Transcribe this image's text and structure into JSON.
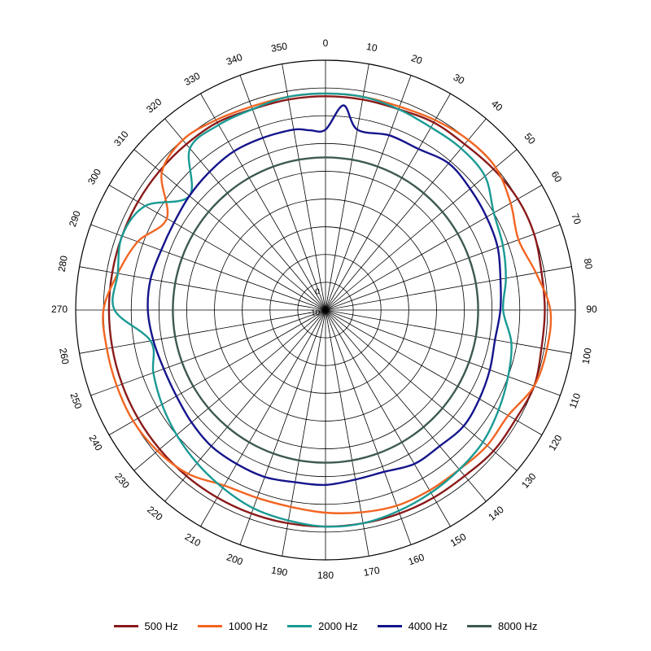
{
  "chart_data": {
    "type": "polar-line",
    "angle_labels": [
      "0",
      "10",
      "20",
      "30",
      "40",
      "50",
      "60",
      "70",
      "80",
      "90",
      "100",
      "110",
      "120",
      "130",
      "140",
      "150",
      "160",
      "170",
      "180",
      "190",
      "200",
      "210",
      "220",
      "230",
      "240",
      "250",
      "260",
      "270",
      "280",
      "290",
      "300",
      "310",
      "320",
      "330",
      "340",
      "350"
    ],
    "radial_labels": [
      "0",
      "-10"
    ],
    "radial_range": [
      -40,
      5
    ],
    "radial_rings": [
      5,
      0,
      -5,
      -10,
      -15,
      -20,
      -25,
      -30,
      -35
    ],
    "grid": true,
    "legend_position": "bottom",
    "series": [
      {
        "name": "500 Hz",
        "color": "#8b1a1a",
        "angles": [
          0,
          10,
          20,
          30,
          40,
          50,
          60,
          70,
          80,
          90,
          100,
          110,
          120,
          130,
          140,
          150,
          160,
          170,
          180,
          190,
          200,
          210,
          220,
          230,
          240,
          250,
          260,
          270,
          280,
          290,
          300,
          310,
          320,
          330,
          340,
          350
        ],
        "values": [
          -1.5,
          -1.5,
          -1.5,
          -1,
          -1,
          -0.5,
          0,
          0,
          -0.5,
          -0.5,
          -0.5,
          0,
          -0.5,
          -0.5,
          -1,
          -1,
          -1,
          -1,
          -1,
          -1,
          -1,
          -1,
          -1,
          -1,
          -1,
          -1,
          -1,
          -1,
          -1,
          -1,
          -1,
          -1,
          -1,
          -1,
          -1.5,
          -1.5
        ]
      },
      {
        "name": "1000 Hz",
        "color": "#f26522",
        "angles": [
          0,
          10,
          20,
          30,
          40,
          50,
          60,
          70,
          80,
          90,
          100,
          110,
          120,
          130,
          140,
          150,
          160,
          170,
          180,
          190,
          200,
          210,
          220,
          230,
          240,
          250,
          260,
          270,
          280,
          290,
          300,
          310,
          320,
          330,
          340,
          350
        ],
        "values": [
          -1,
          -1,
          -1,
          -0.5,
          0,
          0,
          -1.5,
          -3,
          -1.5,
          0.5,
          0.5,
          0,
          -2,
          -2,
          -2.5,
          -2.5,
          -2.5,
          -3,
          -3.5,
          -4,
          -4,
          -3.5,
          -1.5,
          -0.5,
          0,
          0,
          0,
          0,
          -2,
          -4,
          -7,
          -1.5,
          0,
          -0.5,
          -1,
          -1
        ]
      },
      {
        "name": "2000 Hz",
        "color": "#1a9a94",
        "angles": [
          0,
          10,
          20,
          30,
          40,
          50,
          60,
          70,
          80,
          90,
          100,
          110,
          120,
          130,
          140,
          150,
          160,
          170,
          180,
          190,
          200,
          210,
          220,
          230,
          240,
          250,
          260,
          270,
          280,
          290,
          300,
          310,
          320,
          330,
          340,
          350
        ],
        "values": [
          -1,
          -1,
          -1.5,
          -2,
          -2,
          -2.5,
          -5,
          -6,
          -7,
          -8,
          -6,
          -5,
          -4,
          -3,
          -2.5,
          -2,
          -1.5,
          -1,
          -1,
          -1.5,
          -2,
          -3,
          -4,
          -5,
          -6,
          -7,
          -8,
          -2,
          -2,
          -1,
          -2.5,
          -8,
          -2,
          -1.5,
          -1.5,
          -1
        ]
      },
      {
        "name": "4000 Hz",
        "color": "#14148c",
        "angles": [
          0,
          5,
          10,
          20,
          30,
          40,
          50,
          60,
          70,
          80,
          90,
          100,
          110,
          120,
          130,
          140,
          150,
          160,
          170,
          180,
          190,
          200,
          210,
          220,
          230,
          240,
          250,
          260,
          270,
          280,
          290,
          300,
          310,
          320,
          330,
          340,
          350,
          355
        ],
        "values": [
          -7.5,
          -3,
          -7,
          -6.5,
          -6.5,
          -5.5,
          -6,
          -6.5,
          -7,
          -8,
          -8.5,
          -9,
          -8.5,
          -8,
          -7.5,
          -8,
          -8,
          -9,
          -9,
          -8.5,
          -8.5,
          -8,
          -8,
          -8,
          -8.5,
          -9,
          -9,
          -8.5,
          -8,
          -8,
          -8.5,
          -8.5,
          -8,
          -7.5,
          -7,
          -7,
          -7,
          -7.5
        ]
      },
      {
        "name": "8000 Hz",
        "color": "#3d5a4f",
        "angles": [
          0,
          10,
          20,
          30,
          40,
          50,
          60,
          70,
          80,
          90,
          100,
          110,
          120,
          130,
          140,
          150,
          160,
          170,
          180,
          190,
          200,
          210,
          220,
          230,
          240,
          250,
          260,
          270,
          280,
          290,
          300,
          310,
          320,
          330,
          340,
          350
        ],
        "values": [
          -12.5,
          -12.5,
          -12.5,
          -12.5,
          -12.5,
          -12.5,
          -12.5,
          -12.5,
          -12.5,
          -12.5,
          -12.5,
          -12.5,
          -12.5,
          -12.5,
          -12.5,
          -12.5,
          -12.5,
          -12.5,
          -12.5,
          -12.5,
          -12.5,
          -12.5,
          -12.5,
          -12.5,
          -12.5,
          -12.5,
          -12.5,
          -12.5,
          -12.5,
          -12.5,
          -12.5,
          -12.5,
          -12.5,
          -12.5,
          -12.5,
          -12.5
        ]
      }
    ]
  }
}
